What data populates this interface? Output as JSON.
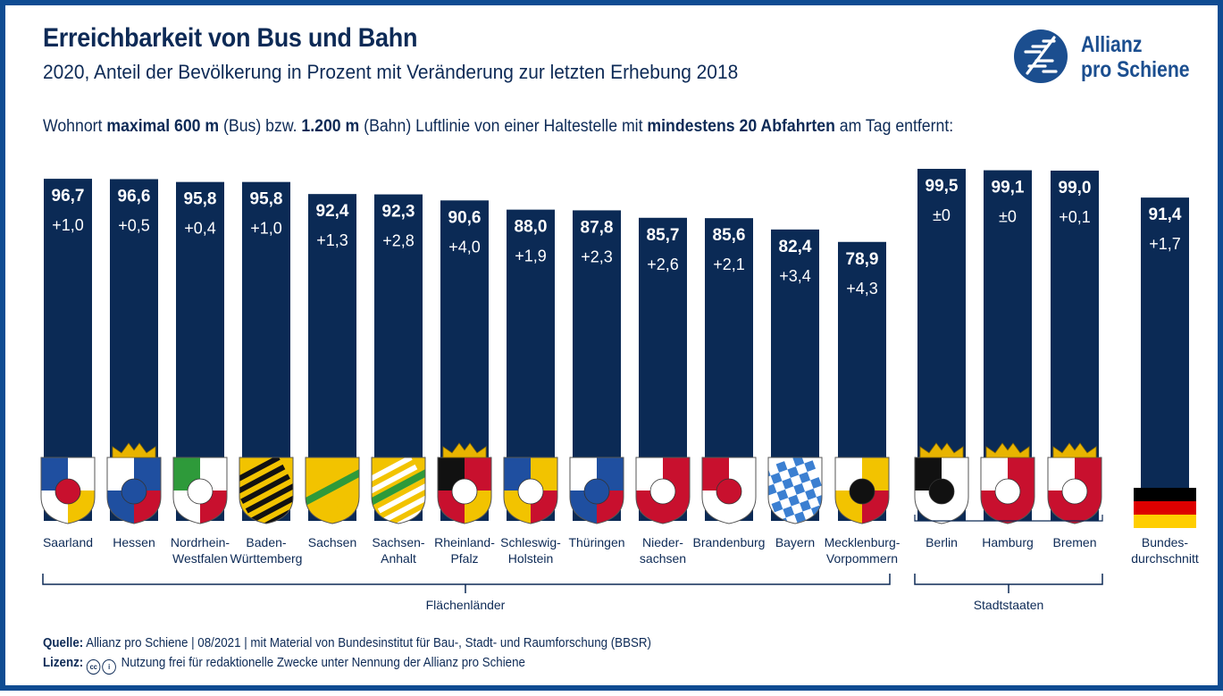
{
  "header": {
    "title": "Erreichbarkeit von Bus und Bahn",
    "subtitle": "2020, Anteil der Bevölkerung in Prozent mit Veränderung zur letzten Erhebung 2018",
    "intro": {
      "p1": "Wohnort ",
      "b1": "maximal 600 m",
      "p2": " (Bus) bzw. ",
      "b2": "1.200 m",
      "p3": " (Bahn) Luftlinie von einer Haltestelle mit ",
      "b3": "mindestens 20 Abfahrten",
      "p4": " am Tag entfernt:"
    }
  },
  "logo": {
    "line1": "Allianz",
    "line2": "pro Schiene"
  },
  "colors": {
    "bar": "#0b2a55",
    "accent": "#1b4e8f",
    "text": "#0d2a56",
    "frame": "#0f4c92"
  },
  "chart_data": {
    "type": "bar",
    "ylim": [
      0,
      100
    ],
    "categories": [
      "Saarland",
      "Hessen",
      "Nordrhein-Westfalen",
      "Baden-Württemberg",
      "Sachsen",
      "Sachsen-Anhalt",
      "Rheinland-Pfalz",
      "Schleswig-Holstein",
      "Thüringen",
      "Nieder-sachsen",
      "Brandenburg",
      "Bayern",
      "Mecklenburg-Vorpommern",
      "Berlin",
      "Hamburg",
      "Bremen",
      "Bundes-durchschnitt"
    ],
    "label_lines": [
      [
        "Saarland"
      ],
      [
        "Hessen"
      ],
      [
        "Nordrhein-",
        "Westfalen"
      ],
      [
        "Baden-",
        "Württemberg"
      ],
      [
        "Sachsen"
      ],
      [
        "Sachsen-",
        "Anhalt"
      ],
      [
        "Rheinland-",
        "Pfalz"
      ],
      [
        "Schleswig-",
        "Holstein"
      ],
      [
        "Thüringen"
      ],
      [
        "Nieder-",
        "sachsen"
      ],
      [
        "Brandenburg"
      ],
      [
        "Bayern"
      ],
      [
        "Mecklenburg-",
        "Vorpommern"
      ],
      [
        "Berlin"
      ],
      [
        "Hamburg"
      ],
      [
        "Bremen"
      ],
      [
        "Bundes-",
        "durchschnitt"
      ]
    ],
    "values": [
      96.7,
      96.6,
      95.8,
      95.8,
      92.4,
      92.3,
      90.6,
      88.0,
      87.8,
      85.7,
      85.6,
      82.4,
      78.9,
      99.5,
      99.1,
      99.0,
      91.4
    ],
    "value_labels": [
      "96,7",
      "96,6",
      "95,8",
      "95,8",
      "92,4",
      "92,3",
      "90,6",
      "88,0",
      "87,8",
      "85,7",
      "85,6",
      "82,4",
      "78,9",
      "99,5",
      "99,1",
      "99,0",
      "91,4"
    ],
    "change_labels": [
      "+1,0",
      "+0,5",
      "+0,4",
      "+1,0",
      "+1,3",
      "+2,8",
      "+4,0",
      "+1,9",
      "+2,3",
      "+2,6",
      "+2,1",
      "+3,4",
      "+4,3",
      "±0",
      "±0",
      "+0,1",
      "+1,7"
    ],
    "changes": [
      1.0,
      0.5,
      0.4,
      1.0,
      1.3,
      2.8,
      4.0,
      1.9,
      2.3,
      2.6,
      2.1,
      3.4,
      4.3,
      0.0,
      0.0,
      0.1,
      1.7
    ],
    "groups": [
      {
        "name": "Flächenländer",
        "members": [
          "Saarland",
          "Hessen",
          "Nordrhein-Westfalen",
          "Baden-Württemberg",
          "Sachsen",
          "Sachsen-Anhalt",
          "Rheinland-Pfalz",
          "Schleswig-Holstein",
          "Thüringen",
          "Nieder-sachsen",
          "Brandenburg",
          "Bayern",
          "Mecklenburg-Vorpommern"
        ]
      },
      {
        "name": "Stadtstaaten",
        "members": [
          "Berlin",
          "Hamburg",
          "Bremen"
        ]
      }
    ],
    "icons": [
      "saarland-coat-of-arms-icon",
      "hessen-coat-of-arms-icon",
      "nrw-coat-of-arms-icon",
      "bw-coat-of-arms-icon",
      "sachsen-coat-of-arms-icon",
      "sachsen-anhalt-coat-of-arms-icon",
      "rlp-coat-of-arms-icon",
      "sh-coat-of-arms-icon",
      "thueringen-coat-of-arms-icon",
      "niedersachsen-coat-of-arms-icon",
      "brandenburg-coat-of-arms-icon",
      "bayern-coat-of-arms-icon",
      "mv-coat-of-arms-icon",
      "berlin-coat-of-arms-icon",
      "hamburg-coat-of-arms-icon",
      "bremen-coat-of-arms-icon",
      "germany-flag-icon"
    ],
    "grid": false,
    "legend": "none"
  },
  "footer": {
    "source_label": "Quelle:",
    "source_text": "Allianz pro Schiene | 08/2021 | mit Material von Bundesinstitut für Bau-, Stadt- und Raumforschung (BBSR)",
    "license_label": "Lizenz:",
    "license_text": "Nutzung frei für redaktionelle Zwecke unter Nennung der Allianz pro Schiene"
  }
}
